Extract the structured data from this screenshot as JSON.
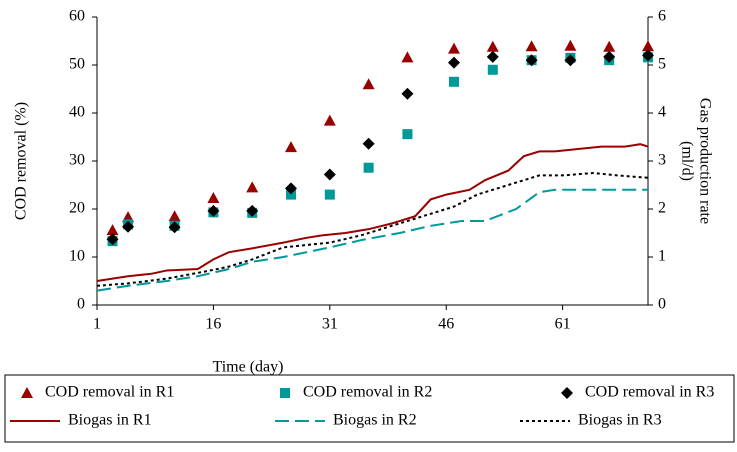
{
  "chart_data": {
    "type": "scatter-line",
    "xlabel": "Time (day)",
    "ylabel": "COD removal (%)",
    "y2label": [
      "Gas production rate",
      "(ml/d)"
    ],
    "xlim": [
      1,
      72
    ],
    "xticks": [
      1,
      16,
      31,
      46,
      61
    ],
    "ylim": [
      0,
      60
    ],
    "yticks": [
      0,
      10,
      20,
      30,
      40,
      50,
      60
    ],
    "y2lim": [
      0,
      6
    ],
    "y2ticks": [
      0,
      1,
      2,
      3,
      4,
      5,
      6
    ],
    "grid": false,
    "legend": "bottom",
    "series": [
      {
        "name": "COD removal in R1",
        "color": "#990000",
        "marker": "triangle",
        "x": [
          3,
          5,
          11,
          16,
          21,
          26,
          31,
          36,
          41,
          47,
          52,
          57,
          62,
          67,
          72
        ],
        "values": [
          15.6,
          18.3,
          18.5,
          22.3,
          24.5,
          32.9,
          38.4,
          46,
          51.6,
          53.4,
          53.8,
          53.9,
          54,
          53.8,
          53.9
        ]
      },
      {
        "name": "COD removal in R2",
        "color": "#009999",
        "marker": "square",
        "x": [
          3,
          5,
          11,
          16,
          21,
          26,
          31,
          36,
          41,
          47,
          52,
          57,
          62,
          67,
          72
        ],
        "values": [
          13.3,
          16.8,
          16.5,
          19.3,
          19.2,
          23,
          23,
          28.6,
          35.6,
          46.5,
          49,
          51,
          51.5,
          51,
          51.6
        ]
      },
      {
        "name": "COD removal in R3",
        "color": "#000000",
        "marker": "diamond",
        "x": [
          3,
          5,
          11,
          16,
          21,
          26,
          31,
          36,
          41,
          47,
          52,
          57,
          62,
          67,
          72
        ],
        "values": [
          13.7,
          16.3,
          16.2,
          19.6,
          19.6,
          24.3,
          27.2,
          33.6,
          44,
          50.5,
          51.7,
          51,
          51,
          51.7,
          52
        ]
      },
      {
        "name": "Biogas in R1",
        "color": "#990000",
        "line": "solid",
        "axis": "y2",
        "x": [
          1,
          3,
          5,
          8,
          10,
          14,
          16,
          18,
          21,
          25,
          28,
          30,
          33,
          36,
          39,
          42,
          44,
          46,
          49,
          51,
          54,
          56,
          58,
          60,
          63,
          66,
          69,
          71,
          72
        ],
        "values": [
          0.5,
          0.55,
          0.6,
          0.65,
          0.72,
          0.75,
          0.95,
          1.1,
          1.18,
          1.3,
          1.4,
          1.45,
          1.5,
          1.58,
          1.7,
          1.85,
          2.2,
          2.3,
          2.4,
          2.6,
          2.8,
          3.1,
          3.2,
          3.2,
          3.25,
          3.3,
          3.3,
          3.35,
          3.3
        ]
      },
      {
        "name": "Biogas in R2",
        "color": "#009999",
        "line": "dash",
        "axis": "y2",
        "x": [
          1,
          5,
          10,
          14,
          18,
          21,
          25,
          28,
          31,
          35,
          40,
          44,
          48,
          51,
          55,
          58,
          60,
          65,
          68,
          72
        ],
        "values": [
          0.3,
          0.4,
          0.5,
          0.6,
          0.75,
          0.9,
          1.0,
          1.1,
          1.2,
          1.35,
          1.5,
          1.65,
          1.75,
          1.75,
          2.0,
          2.35,
          2.4,
          2.4,
          2.4,
          2.4
        ]
      },
      {
        "name": "Biogas in R3",
        "color": "#000000",
        "line": "dot",
        "axis": "y2",
        "x": [
          1,
          5,
          10,
          15,
          18,
          21,
          25,
          28,
          31,
          35,
          40,
          44,
          47,
          50,
          55,
          58,
          61,
          65,
          68,
          72
        ],
        "values": [
          0.4,
          0.45,
          0.55,
          0.7,
          0.8,
          0.95,
          1.2,
          1.25,
          1.3,
          1.45,
          1.7,
          1.9,
          2.05,
          2.3,
          2.55,
          2.7,
          2.7,
          2.75,
          2.7,
          2.65
        ]
      }
    ]
  }
}
